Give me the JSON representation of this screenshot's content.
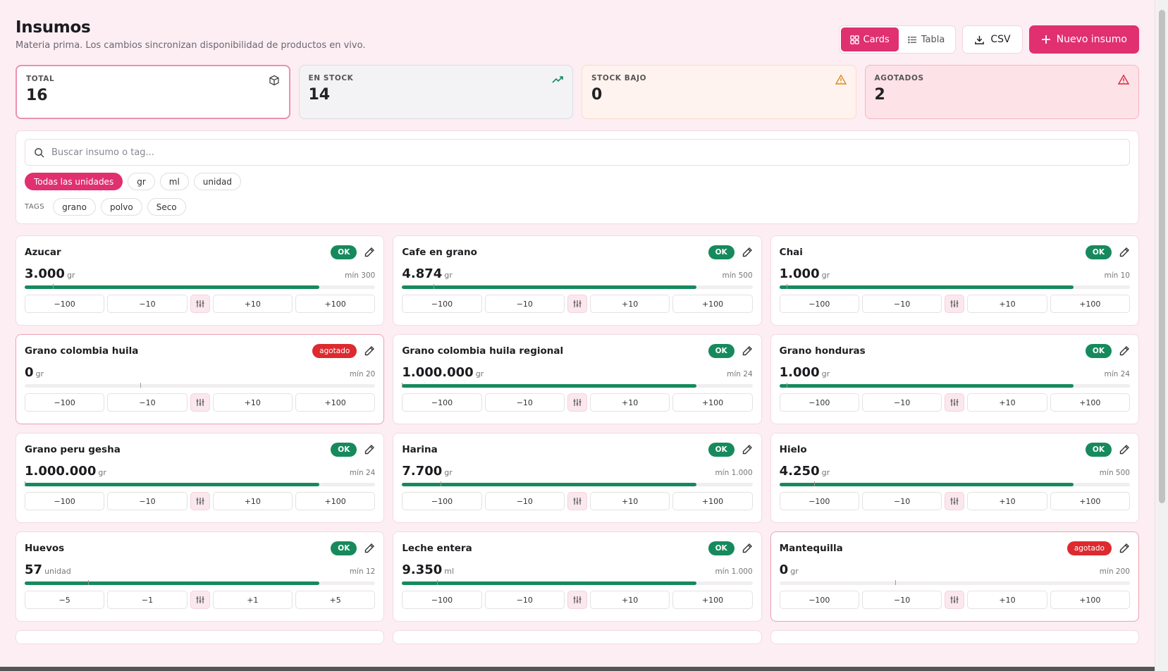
{
  "header": {
    "title": "Insumos",
    "subtitle": "Materia prima. Los cambios sincronizan disponibilidad de productos en vivo.",
    "view_cards": "Cards",
    "view_table": "Tabla",
    "csv": "CSV",
    "new": "Nuevo insumo"
  },
  "stats": [
    {
      "label": "TOTAL",
      "value": "16",
      "icon": "box-icon"
    },
    {
      "label": "EN STOCK",
      "value": "14",
      "icon": "trending-up-icon"
    },
    {
      "label": "STOCK BAJO",
      "value": "0",
      "icon": "warning-icon"
    },
    {
      "label": "AGOTADOS",
      "value": "2",
      "icon": "alert-icon"
    }
  ],
  "filters": {
    "search_placeholder": "Buscar insumo o tag...",
    "units": [
      "Todas las unidades",
      "gr",
      "ml",
      "unidad"
    ],
    "tags_label": "TAGS",
    "tags": [
      "grano",
      "polvo",
      "Seco"
    ]
  },
  "colors": {
    "accent": "#e0306f",
    "ok": "#168a5c",
    "out": "#dc2a2f"
  },
  "items": [
    {
      "name": "Azucar",
      "status": "OK",
      "qty": "3.000",
      "unit": "gr",
      "min": "mín 300",
      "level": 0.84,
      "steps": [
        "−100",
        "−10",
        "+10",
        "+100"
      ]
    },
    {
      "name": "Cafe en grano",
      "status": "OK",
      "qty": "4.874",
      "unit": "gr",
      "min": "mín 500",
      "level": 0.84,
      "steps": [
        "−100",
        "−10",
        "+10",
        "+100"
      ]
    },
    {
      "name": "Chai",
      "status": "OK",
      "qty": "1.000",
      "unit": "gr",
      "min": "mín 10",
      "level": 0.84,
      "steps": [
        "−100",
        "−10",
        "+10",
        "+100"
      ]
    },
    {
      "name": "Grano colombia huila",
      "status": "agotado",
      "qty": "0",
      "unit": "gr",
      "min": "mín 20",
      "level": 0,
      "steps": [
        "−100",
        "−10",
        "+10",
        "+100"
      ]
    },
    {
      "name": "Grano colombia huila regional",
      "status": "OK",
      "qty": "1.000.000",
      "unit": "gr",
      "min": "mín 24",
      "level": 0.84,
      "steps": [
        "−100",
        "−10",
        "+10",
        "+100"
      ]
    },
    {
      "name": "Grano honduras",
      "status": "OK",
      "qty": "1.000",
      "unit": "gr",
      "min": "mín 24",
      "level": 0.84,
      "steps": [
        "−100",
        "−10",
        "+10",
        "+100"
      ]
    },
    {
      "name": "Grano peru gesha",
      "status": "OK",
      "qty": "1.000.000",
      "unit": "gr",
      "min": "mín 24",
      "level": 0.84,
      "steps": [
        "−100",
        "−10",
        "+10",
        "+100"
      ]
    },
    {
      "name": "Harina",
      "status": "OK",
      "qty": "7.700",
      "unit": "gr",
      "min": "mín 1.000",
      "level": 0.84,
      "steps": [
        "−100",
        "−10",
        "+10",
        "+100"
      ]
    },
    {
      "name": "Hielo",
      "status": "OK",
      "qty": "4.250",
      "unit": "gr",
      "min": "mín 500",
      "level": 0.84,
      "steps": [
        "−100",
        "−10",
        "+10",
        "+100"
      ]
    },
    {
      "name": "Huevos",
      "status": "OK",
      "qty": "57",
      "unit": "unidad",
      "min": "mín 12",
      "level": 0.84,
      "steps": [
        "−5",
        "−1",
        "+1",
        "+5"
      ]
    },
    {
      "name": "Leche entera",
      "status": "OK",
      "qty": "9.350",
      "unit": "ml",
      "min": "mín 1.000",
      "level": 0.84,
      "steps": [
        "−100",
        "−10",
        "+10",
        "+100"
      ]
    },
    {
      "name": "Mantequilla",
      "status": "agotado",
      "qty": "0",
      "unit": "gr",
      "min": "mín 200",
      "level": 0,
      "steps": [
        "−100",
        "−10",
        "+10",
        "+100"
      ]
    }
  ]
}
